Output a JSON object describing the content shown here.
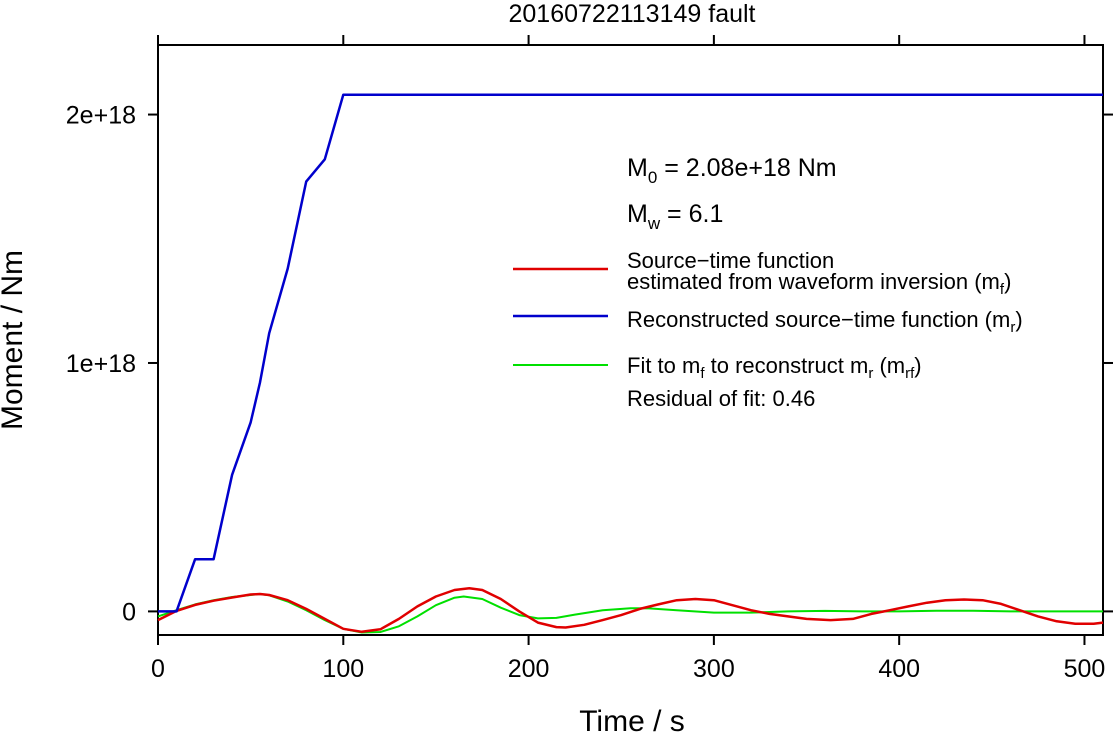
{
  "chart_data": {
    "type": "line",
    "title": "20160722113149 fault",
    "xlabel": "Time / s",
    "ylabel": "Moment / Nm",
    "xlim": [
      0,
      510
    ],
    "ylim": [
      -9.5e+16,
      2.28e+18
    ],
    "x_ticks": [
      0,
      100,
      200,
      300,
      400,
      500
    ],
    "x_tick_labels": [
      "0",
      "100",
      "200",
      "300",
      "400",
      "500"
    ],
    "y_ticks": [
      0,
      1e+18,
      2e+18
    ],
    "y_tick_labels": [
      "0",
      "1e+18",
      "2e+18"
    ],
    "grid": false,
    "legend_position": "right",
    "annotations": {
      "m0": {
        "symbol": "M",
        "sub": "0",
        "text": " = 2.08e+18 Nm"
      },
      "mw": {
        "symbol": "M",
        "sub": "w",
        "text": " = 6.1"
      },
      "residual": "Residual of fit: 0.46"
    },
    "legend": [
      {
        "color": "#e00000",
        "lines": [
          "Source−time function",
          "estimated from waveform inversion (m",
          "f",
          ")"
        ]
      },
      {
        "color": "#0000cc",
        "lines": [
          "Reconstructed source−time function (m",
          "r",
          ")"
        ]
      },
      {
        "color": "#00e000",
        "lines": [
          "Fit to m",
          "f",
          " to reconstruct m",
          "r",
          " (m",
          "rf",
          ")"
        ]
      }
    ],
    "series": [
      {
        "name": "Source−time function estimated from waveform inversion (mf)",
        "color": "#e00000",
        "x": [
          0,
          10,
          20,
          30,
          40,
          50,
          55,
          60,
          70,
          80,
          90,
          100,
          110,
          120,
          130,
          140,
          150,
          160,
          168,
          175,
          185,
          195,
          205,
          215,
          220,
          230,
          240,
          250,
          260,
          270,
          280,
          290,
          300,
          310,
          320,
          330,
          340,
          350,
          363,
          375,
          385,
          395,
          405,
          415,
          425,
          435,
          445,
          455,
          465,
          475,
          485,
          495,
          505,
          510
        ],
        "y": [
          -3.5e+16,
          2000000000000000.0,
          2.6e+16,
          4.3e+16,
          5.6e+16,
          6.8e+16,
          7e+16,
          6.6e+16,
          4.5e+16,
          1e+16,
          -3e+16,
          -7e+16,
          -8.2e+16,
          -7.2e+16,
          -3e+16,
          2e+16,
          6e+16,
          8.6e+16,
          9.3e+16,
          8.6e+16,
          5e+16,
          0,
          -4.5e+16,
          -6.3e+16,
          -6.5e+16,
          -5.4e+16,
          -3.5e+16,
          -1.5e+16,
          1e+16,
          2.8e+16,
          4.5e+16,
          5e+16,
          4.5e+16,
          2.5e+16,
          5000000000000000.0,
          -1e+16,
          -2e+16,
          -3e+16,
          -3.5e+16,
          -3e+16,
          -1e+16,
          5000000000000000.0,
          2e+16,
          3.5e+16,
          4.5e+16,
          4.8e+16,
          4.5e+16,
          3e+16,
          5000000000000000.0,
          -2e+16,
          -4e+16,
          -5e+16,
          -5e+16,
          -4.5e+16
        ]
      },
      {
        "name": "Reconstructed source−time function (mr)",
        "color": "#0000cc",
        "x": [
          0,
          10,
          20,
          30,
          40,
          50,
          55,
          60,
          70,
          80,
          90,
          100,
          510
        ],
        "y": [
          0,
          0,
          2.1e+17,
          2.1e+17,
          5.5e+17,
          7.6e+17,
          9.2e+17,
          1.12e+18,
          1.38e+18,
          1.73e+18,
          1.82e+18,
          2.08e+18,
          2.08e+18
        ]
      },
      {
        "name": "Fit to mf to reconstruct mr (mrf)",
        "color": "#00e000",
        "x": [
          0,
          10,
          20,
          30,
          40,
          50,
          55,
          60,
          70,
          80,
          90,
          100,
          110,
          120,
          130,
          140,
          150,
          160,
          165,
          175,
          185,
          195,
          205,
          215,
          225,
          240,
          255,
          265,
          280,
          300,
          320,
          340,
          360,
          380,
          400,
          420,
          440,
          460,
          480,
          500,
          510
        ],
        "y": [
          -2e+16,
          5000000000000000.0,
          2.8e+16,
          4.5e+16,
          5.8e+16,
          6.6e+16,
          7e+16,
          6.5e+16,
          4e+16,
          5000000000000000.0,
          -3.5e+16,
          -7e+16,
          -8.5e+16,
          -8.3e+16,
          -6e+16,
          -2e+16,
          2.5e+16,
          5.5e+16,
          6e+16,
          5e+16,
          1.5e+16,
          -1.5e+16,
          -2.8e+16,
          -2.6e+16,
          -1.3e+16,
          5000000000000000.0,
          1.3e+16,
          1.2e+16,
          5000000000000000.0,
          -5000000000000000.0,
          -5000000000000000.0,
          0,
          2000000000000000.0,
          0,
          0,
          3000000000000000.0,
          3000000000000000.0,
          0,
          0,
          0,
          0
        ]
      }
    ]
  }
}
